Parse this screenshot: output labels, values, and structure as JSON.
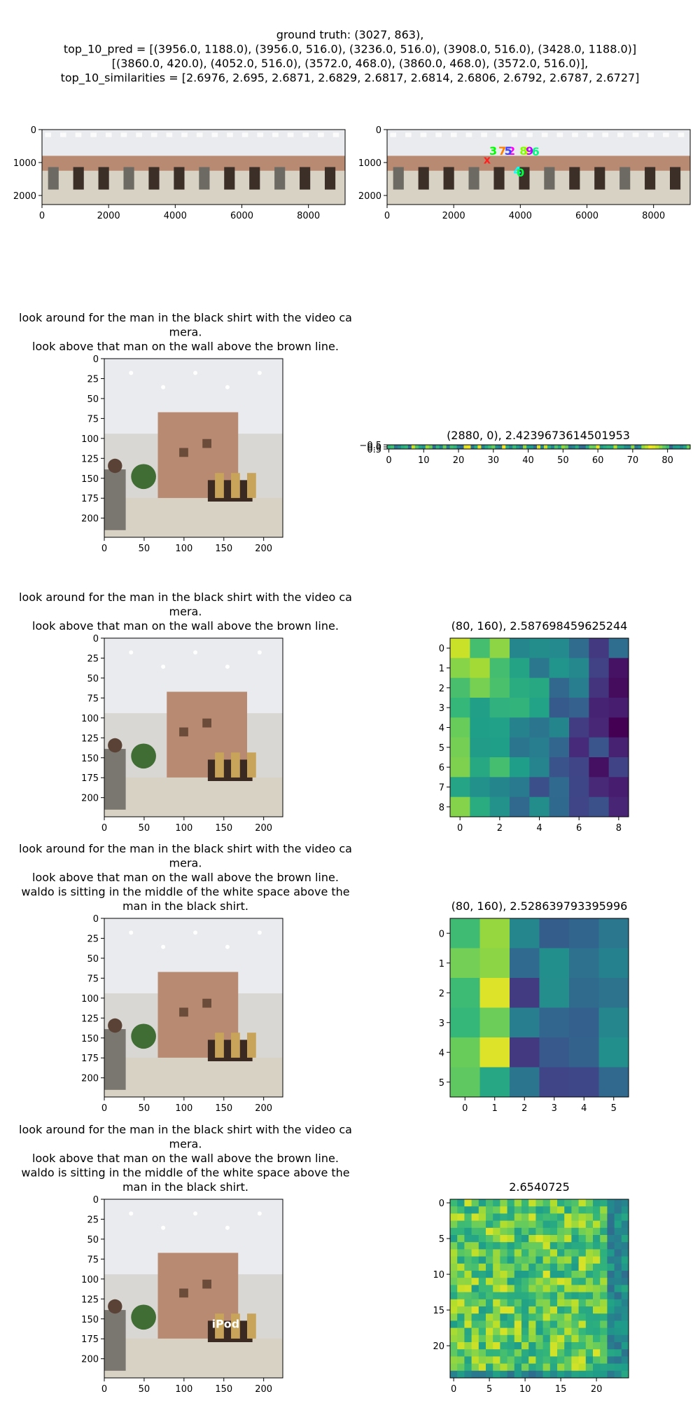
{
  "suptitle": [
    "ground truth: (3027, 863),",
    "top_10_pred = [(3956.0, 1188.0), (3956.0, 516.0), (3236.0, 516.0), (3908.0, 516.0), (3428.0, 1188.0)]",
    "[(3860.0, 420.0), (4052.0, 516.0), (3572.0, 468.0), (3860.0, 468.0), (3572.0, 516.0)],",
    "top_10_similarities = [2.6976, 2.695, 2.6871, 2.6829, 2.6817, 2.6814, 2.6806, 2.6792, 2.6787, 2.6727]"
  ],
  "colors": {
    "wall": "#d9d7d3",
    "panel": "#b98a72",
    "floor": "#d8d2c4",
    "ceiling": "#e9ebee",
    "viridis": [
      "#440154",
      "#482878",
      "#3e4989",
      "#31688e",
      "#26828e",
      "#1f9e89",
      "#35b779",
      "#6ece58",
      "#b5de2b",
      "#fde725"
    ]
  },
  "chart_data": [
    {
      "type": "image",
      "panel": "panorama",
      "x_ticks": [
        "0",
        "2000",
        "4000",
        "6000",
        "8000"
      ],
      "y_ticks": [
        "0",
        "1000",
        "2000"
      ],
      "xlim": [
        0,
        9100
      ],
      "ylim": [
        2275,
        0
      ]
    },
    {
      "type": "image",
      "panel": "panorama-with-predictions",
      "x_ticks": [
        "0",
        "2000",
        "4000",
        "6000",
        "8000"
      ],
      "y_ticks": [
        "0",
        "1000",
        "2000"
      ],
      "xlim": [
        0,
        9100
      ],
      "ylim": [
        2275,
        0
      ],
      "marker_labels": [
        "x",
        "1",
        "2",
        "3",
        "4",
        "5",
        "6",
        "7",
        "8",
        "9",
        "0"
      ],
      "marker_colors": [
        "#ff2020",
        "#ffff00",
        "#ff00ff",
        "#00ff00",
        "#00ffff",
        "#4040ff",
        "#00ff80",
        "#ff8000",
        "#80ff00",
        "#c000ff",
        "#00ff40"
      ]
    },
    {
      "type": "image",
      "panel": "view-1",
      "title": [
        "look around for the man in the black shirt with the video ca",
        "mera.",
        "look above that man on the wall above the brown line."
      ],
      "ticks": [
        "0",
        "25",
        "50",
        "75",
        "100",
        "125",
        "150",
        "175",
        "200"
      ],
      "x_ticks": [
        "0",
        "50",
        "100",
        "150",
        "200"
      ]
    },
    {
      "type": "heatmap",
      "panel": "strip",
      "title": "(2880, 0), 2.4239673614501953",
      "x_ticks": [
        "0",
        "10",
        "20",
        "30",
        "40",
        "50",
        "60",
        "70",
        "80"
      ],
      "y_ticks": [
        "−0.5",
        "0.0",
        "0.5"
      ],
      "cols": 87,
      "rows": 1
    },
    {
      "type": "image",
      "panel": "view-2",
      "title": [
        "look around for the man in the black shirt with the video ca",
        "mera.",
        "look above that man on the wall above the brown line."
      ],
      "ticks": [
        "0",
        "25",
        "50",
        "75",
        "100",
        "125",
        "150",
        "175",
        "200"
      ],
      "x_ticks": [
        "0",
        "50",
        "100",
        "150",
        "200"
      ]
    },
    {
      "type": "heatmap",
      "panel": "grid-9",
      "title": "(80, 160), 2.587698459625244",
      "ticks": [
        "0",
        "1",
        "2",
        "3",
        "4",
        "5",
        "6",
        "7",
        "8"
      ],
      "x_ticks": [
        "0",
        "2",
        "4",
        "6",
        "8"
      ],
      "size": 9
    },
    {
      "type": "image",
      "panel": "view-3",
      "title": [
        "look around for the man in the black shirt with the video ca",
        "mera.",
        "look above that man on the wall above the brown line.",
        "waldo is sitting in the middle of the white space above the",
        "man in the black shirt."
      ],
      "ticks": [
        "0",
        "25",
        "50",
        "75",
        "100",
        "125",
        "150",
        "175",
        "200"
      ],
      "x_ticks": [
        "0",
        "50",
        "100",
        "150",
        "200"
      ]
    },
    {
      "type": "heatmap",
      "panel": "grid-6",
      "title": "(80, 160), 2.528639793395996",
      "ticks": [
        "0",
        "1",
        "2",
        "3",
        "4",
        "5"
      ],
      "x_ticks": [
        "0",
        "1",
        "2",
        "3",
        "4",
        "5"
      ],
      "size": 6
    },
    {
      "type": "image",
      "panel": "view-4",
      "title": [
        "look around for the man in the black shirt with the video ca",
        "mera.",
        "look above that man on the wall above the brown line.",
        "waldo is sitting in the middle of the white space above the",
        "man in the black shirt."
      ],
      "ticks": [
        "0",
        "25",
        "50",
        "75",
        "100",
        "125",
        "150",
        "175",
        "200"
      ],
      "x_ticks": [
        "0",
        "50",
        "100",
        "150",
        "200"
      ],
      "overlay_label": "iPod"
    },
    {
      "type": "heatmap",
      "panel": "grid-25",
      "title": "2.6540725",
      "y_ticks": [
        "0",
        "5",
        "10",
        "15",
        "20"
      ],
      "x_ticks": [
        "0",
        "5",
        "10",
        "15",
        "20"
      ],
      "size": 25
    }
  ]
}
